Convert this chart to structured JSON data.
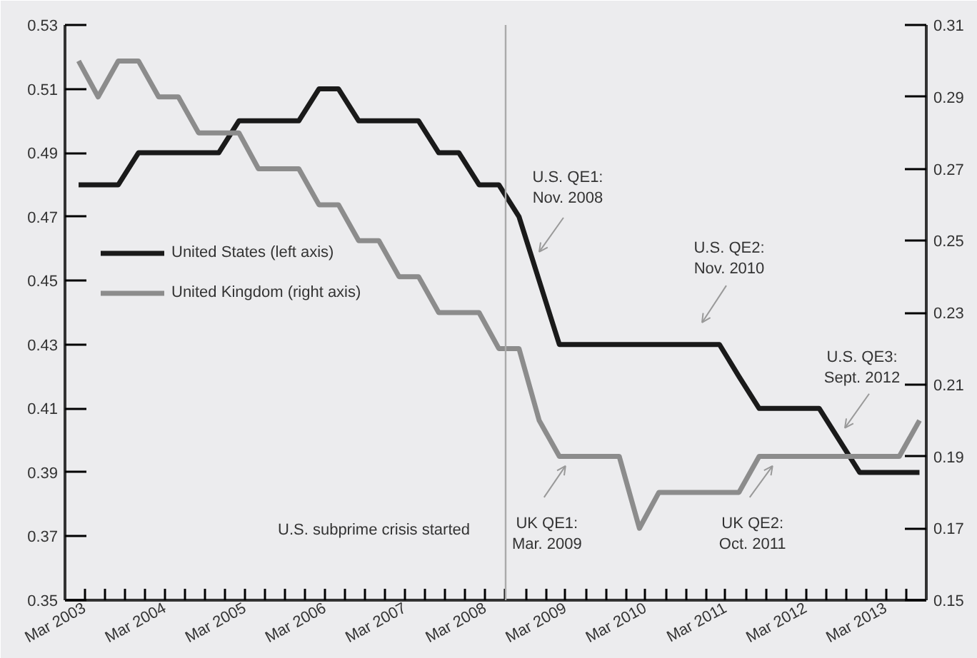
{
  "chart_data": {
    "type": "line",
    "x": [
      "2003-02",
      "2003-05",
      "2003-08",
      "2003-11",
      "2004-02",
      "2004-05",
      "2004-08",
      "2004-11",
      "2005-02",
      "2005-05",
      "2005-08",
      "2005-11",
      "2006-02",
      "2006-05",
      "2006-08",
      "2006-11",
      "2007-02",
      "2007-05",
      "2007-08",
      "2007-11",
      "2008-02",
      "2008-05",
      "2008-08",
      "2008-11",
      "2009-02",
      "2009-05",
      "2009-08",
      "2009-11",
      "2010-02",
      "2010-05",
      "2010-08",
      "2010-11",
      "2011-02",
      "2011-05",
      "2011-08",
      "2011-11",
      "2012-02",
      "2012-05",
      "2012-08",
      "2012-11",
      "2013-02",
      "2013-05",
      "2013-08"
    ],
    "series": [
      {
        "name": "United States (left axis)",
        "color": "#1a1a1a",
        "values": [
          0.48,
          0.48,
          0.48,
          0.49,
          0.49,
          0.49,
          0.49,
          0.49,
          0.5,
          0.5,
          0.5,
          0.5,
          0.51,
          0.51,
          0.5,
          0.5,
          0.5,
          0.5,
          0.49,
          0.49,
          0.48,
          0.48,
          0.47,
          0.45,
          0.43,
          0.43,
          0.43,
          0.43,
          0.43,
          0.43,
          0.43,
          0.43,
          0.43,
          0.42,
          0.41,
          0.41,
          0.41,
          0.41,
          0.4,
          0.39,
          0.39,
          0.39,
          0.39
        ]
      },
      {
        "name": "United Kingdom (right axis)",
        "color": "#8c8c8c",
        "axis": "y2",
        "values": [
          0.3,
          0.29,
          0.3,
          0.3,
          0.29,
          0.29,
          0.28,
          0.28,
          0.28,
          0.27,
          0.27,
          0.27,
          0.26,
          0.26,
          0.25,
          0.25,
          0.24,
          0.24,
          0.23,
          0.23,
          0.23,
          0.22,
          0.22,
          0.2,
          0.19,
          0.19,
          0.19,
          0.19,
          0.17,
          0.18,
          0.18,
          0.18,
          0.18,
          0.18,
          0.19,
          0.19,
          0.19,
          0.19,
          0.19,
          0.19,
          0.19,
          0.19,
          0.2
        ]
      }
    ],
    "xlim": [
      "2002-12",
      "2013-09"
    ],
    "xticks": [
      {
        "value": "2003-03",
        "label": "Mar 2003"
      },
      {
        "value": "2003-06",
        "label": null
      },
      {
        "value": "2003-09",
        "label": null
      },
      {
        "value": "2003-12",
        "label": null
      },
      {
        "value": "2004-03",
        "label": "Mar 2004"
      },
      {
        "value": "2004-06",
        "label": null
      },
      {
        "value": "2004-09",
        "label": null
      },
      {
        "value": "2004-12",
        "label": null
      },
      {
        "value": "2005-03",
        "label": "Mar 2005"
      },
      {
        "value": "2005-06",
        "label": null
      },
      {
        "value": "2005-09",
        "label": null
      },
      {
        "value": "2005-12",
        "label": null
      },
      {
        "value": "2006-03",
        "label": "Mar 2006"
      },
      {
        "value": "2006-06",
        "label": null
      },
      {
        "value": "2006-09",
        "label": null
      },
      {
        "value": "2006-12",
        "label": null
      },
      {
        "value": "2007-03",
        "label": "Mar 2007"
      },
      {
        "value": "2007-06",
        "label": null
      },
      {
        "value": "2007-09",
        "label": null
      },
      {
        "value": "2007-12",
        "label": null
      },
      {
        "value": "2008-03",
        "label": "Mar 2008"
      },
      {
        "value": "2008-06",
        "label": null
      },
      {
        "value": "2008-09",
        "label": null
      },
      {
        "value": "2008-12",
        "label": null
      },
      {
        "value": "2009-03",
        "label": "Mar 2009"
      },
      {
        "value": "2009-06",
        "label": null
      },
      {
        "value": "2009-09",
        "label": null
      },
      {
        "value": "2009-12",
        "label": null
      },
      {
        "value": "2010-03",
        "label": "Mar 2010"
      },
      {
        "value": "2010-06",
        "label": null
      },
      {
        "value": "2010-09",
        "label": null
      },
      {
        "value": "2010-12",
        "label": null
      },
      {
        "value": "2011-03",
        "label": "Mar 2011"
      },
      {
        "value": "2011-06",
        "label": null
      },
      {
        "value": "2011-09",
        "label": null
      },
      {
        "value": "2011-12",
        "label": null
      },
      {
        "value": "2012-03",
        "label": "Mar 2012"
      },
      {
        "value": "2012-06",
        "label": null
      },
      {
        "value": "2012-09",
        "label": null
      },
      {
        "value": "2012-12",
        "label": null
      },
      {
        "value": "2013-03",
        "label": "Mar 2013"
      },
      {
        "value": "2013-06",
        "label": null
      }
    ],
    "ylim": [
      0.35,
      0.53
    ],
    "yticks": [
      0.35,
      0.37,
      0.39,
      0.41,
      0.43,
      0.45,
      0.47,
      0.49,
      0.51,
      0.53
    ],
    "y2lim": [
      0.15,
      0.31
    ],
    "y2ticks": [
      0.15,
      0.17,
      0.19,
      0.21,
      0.23,
      0.25,
      0.27,
      0.29,
      0.31
    ],
    "ref_lines": [
      {
        "axis": "x",
        "value": "2008-06",
        "label": "U.S. subprime crisis started",
        "color": "#aaaaaa"
      }
    ],
    "annotations": [
      {
        "text": "U.S. QE1:\nNov. 2008",
        "x": "2008-11",
        "y": 0.459
      },
      "U.S. QE2:\nNov. 2010",
      "U.S. QE3:\nSept. 2012",
      {
        "text": "UK QE1:\nMar. 2009",
        "x": "2009-03",
        "y": 0.392
      },
      {
        "text": "UK QE2:\nOct. 2011",
        "x": "2011-10",
        "y": 0.392
      }
    ],
    "legend": "left"
  }
}
